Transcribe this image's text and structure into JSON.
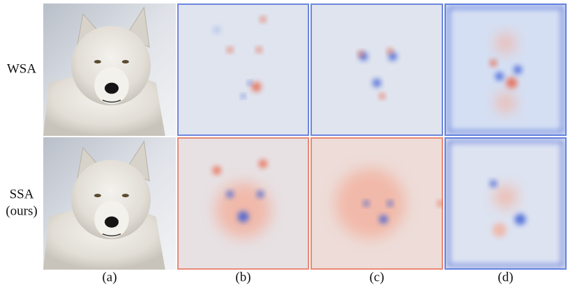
{
  "row_labels": [
    {
      "lines": [
        "WSA"
      ]
    },
    {
      "lines": [
        "SSA",
        "(ours)"
      ]
    }
  ],
  "column_labels": [
    "(a)",
    "(b)",
    "(c)",
    "(d)"
  ]
}
